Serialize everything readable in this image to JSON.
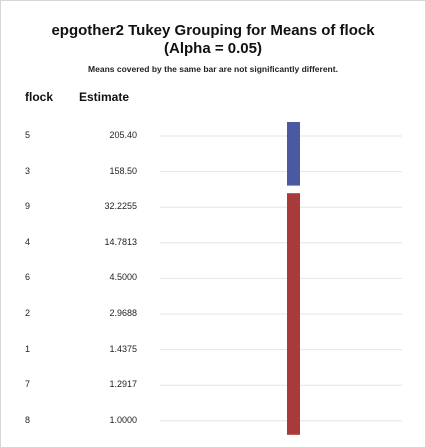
{
  "chart_data": {
    "type": "table",
    "title_line1": "epgother2 Tukey Grouping for Means of flock",
    "title_line2": "(Alpha = 0.05)",
    "subtitle": "Means covered by the same bar are not significantly different.",
    "columns": [
      "flock",
      "Estimate"
    ],
    "rows": [
      {
        "flock": "5",
        "estimate": "205.40"
      },
      {
        "flock": "3",
        "estimate": "158.50"
      },
      {
        "flock": "9",
        "estimate": "32.2255"
      },
      {
        "flock": "4",
        "estimate": "14.7813"
      },
      {
        "flock": "6",
        "estimate": "4.5000"
      },
      {
        "flock": "2",
        "estimate": "2.9688"
      },
      {
        "flock": "1",
        "estimate": "1.4375"
      },
      {
        "flock": "7",
        "estimate": "1.2917"
      },
      {
        "flock": "8",
        "estimate": "1.0000"
      }
    ],
    "groups": [
      {
        "start_row": 0,
        "end_row": 1,
        "color": "#4a5aa0"
      },
      {
        "start_row": 2,
        "end_row": 8,
        "color": "#a83a3a"
      }
    ],
    "grid": true,
    "grid_color": "#e4e4e4"
  }
}
